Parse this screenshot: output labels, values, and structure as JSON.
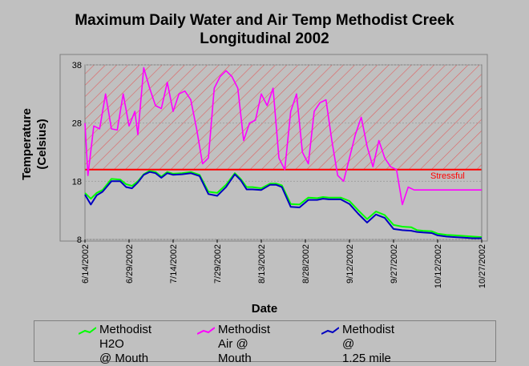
{
  "title_line1": "Maximum Daily Water and Air Temp Methodist Creek",
  "title_line2": "Longitudinal 2002",
  "chart_data": {
    "type": "line",
    "title": "Maximum Daily Water and Air Temp Methodist Creek Longitudinal 2002",
    "xlabel": "Date",
    "ylabel": "Temperature (Celsius)",
    "ylabel_line1": "Temperature",
    "ylabel_line2": "(Celsius)",
    "ylim": [
      8,
      38
    ],
    "yticks": [
      "38",
      "28",
      "18",
      "8"
    ],
    "xlim": [
      "6/14/2002",
      "10/27/2002"
    ],
    "xticks": [
      "6/14/2002",
      "6/29/2002",
      "7/14/2002",
      "7/29/2002",
      "8/13/2002",
      "8/28/2002",
      "9/12/2002",
      "9/27/2002",
      "10/12/2002",
      "10/27/2002"
    ],
    "threshold": {
      "label": "Stressful",
      "value": 20,
      "color": "#ff0000"
    },
    "series": [
      {
        "name": "Methodist H2O @ Mouth",
        "color": "#00ff00",
        "x": [
          "6/14",
          "6/16",
          "6/18",
          "6/20",
          "6/23",
          "6/26",
          "6/28",
          "6/30",
          "7/2",
          "7/4",
          "7/6",
          "7/8",
          "7/10",
          "7/12",
          "7/14",
          "7/17",
          "7/20",
          "7/23",
          "7/26",
          "7/29",
          "8/1",
          "8/4",
          "8/6",
          "8/8",
          "8/10",
          "8/13",
          "8/16",
          "8/18",
          "8/20",
          "8/23",
          "8/26",
          "8/29",
          "9/1",
          "9/3",
          "9/5",
          "9/7",
          "9/9",
          "9/12",
          "9/15",
          "9/18",
          "9/21",
          "9/24",
          "9/27",
          "9/30",
          "10/3",
          "10/5",
          "10/7",
          "10/10",
          "10/12",
          "10/15",
          "10/18",
          "10/21",
          "10/24",
          "10/27"
        ],
        "values": [
          16,
          15,
          16,
          16.5,
          18.4,
          18.3,
          17.5,
          17.2,
          18,
          19.2,
          19.8,
          19.6,
          18.8,
          19.6,
          19.3,
          19.4,
          19.6,
          19.1,
          16.2,
          16,
          17.4,
          19.4,
          18.4,
          17,
          17,
          16.8,
          17.6,
          17.6,
          17.3,
          14.1,
          14,
          15.2,
          15.1,
          15.3,
          15.2,
          15.2,
          15.2,
          14.6,
          13,
          11.5,
          12.8,
          12.2,
          10.5,
          10.2,
          10.1,
          9.6,
          9.5,
          9.4,
          9,
          8.8,
          8.7,
          8.6,
          8.5,
          8.4
        ]
      },
      {
        "name": "Methodist Air @ Mouth",
        "color": "#ff00ff",
        "x": [
          "6/14",
          "6/15",
          "6/17",
          "6/19",
          "6/21",
          "6/23",
          "6/25",
          "6/27",
          "6/29",
          "6/31",
          "7/2",
          "7/4",
          "7/6",
          "7/8",
          "7/10",
          "7/12",
          "7/14",
          "7/16",
          "7/18",
          "7/20",
          "7/22",
          "7/24",
          "7/26",
          "7/28",
          "7/30",
          "8/1",
          "8/3",
          "8/5",
          "8/7",
          "8/9",
          "8/11",
          "8/13",
          "8/15",
          "8/17",
          "8/19",
          "8/21",
          "8/23",
          "8/25",
          "8/27",
          "8/29",
          "8/31",
          "9/2",
          "9/4",
          "9/6",
          "9/8",
          "9/10",
          "9/12",
          "9/14",
          "9/16",
          "9/18",
          "9/20",
          "9/22",
          "9/24",
          "9/26",
          "9/28",
          "9/30",
          "10/2",
          "10/4",
          "10/6",
          "10/8",
          "10/10",
          "10/12",
          "10/14",
          "10/16",
          "10/18",
          "10/20",
          "10/22",
          "10/24",
          "10/26",
          "10/27"
        ],
        "values": [
          28,
          19,
          27.5,
          27,
          33,
          27,
          26.8,
          33,
          27.5,
          30,
          26,
          37.5,
          34,
          31,
          30.5,
          35,
          30,
          33,
          33.5,
          32,
          27,
          21,
          22,
          34,
          36,
          37,
          36,
          34,
          25,
          28,
          28.5,
          33,
          31,
          34,
          22,
          20,
          30,
          33,
          23,
          21,
          30,
          31.5,
          32,
          25,
          19,
          18,
          22,
          26,
          29,
          24,
          20.5,
          25,
          22,
          20.5,
          20,
          14,
          17,
          16.5,
          16.5,
          16.5,
          16.5,
          16.5,
          16.5,
          16.5,
          16.5,
          16.5,
          16.5,
          16.5,
          16.5,
          16.5
        ]
      },
      {
        "name": "Methodist @ 1.25 mile",
        "color": "#0000c0",
        "x": [
          "6/14",
          "6/16",
          "6/18",
          "6/20",
          "6/23",
          "6/26",
          "6/28",
          "6/30",
          "7/2",
          "7/4",
          "7/6",
          "7/8",
          "7/10",
          "7/12",
          "7/14",
          "7/17",
          "7/20",
          "7/23",
          "7/26",
          "7/29",
          "8/1",
          "8/4",
          "8/6",
          "8/8",
          "8/10",
          "8/13",
          "8/16",
          "8/18",
          "8/20",
          "8/23",
          "8/26",
          "8/29",
          "9/1",
          "9/3",
          "9/5",
          "9/7",
          "9/9",
          "9/12",
          "9/15",
          "9/18",
          "9/21",
          "9/24",
          "9/27",
          "9/30",
          "10/3",
          "10/5",
          "10/7",
          "10/10",
          "10/12",
          "10/15",
          "10/18",
          "10/21",
          "10/24",
          "10/27"
        ],
        "values": [
          15.7,
          14,
          15.6,
          16.2,
          18,
          18,
          17,
          16.8,
          17.8,
          19.1,
          19.6,
          19.4,
          18.6,
          19.4,
          19.1,
          19.2,
          19.4,
          18.9,
          15.8,
          15.5,
          17,
          19.2,
          18.2,
          16.6,
          16.6,
          16.5,
          17.4,
          17.4,
          17,
          13.6,
          13.5,
          14.8,
          14.8,
          15,
          14.9,
          14.9,
          14.9,
          14.1,
          12.4,
          10.9,
          12.3,
          11.7,
          9.8,
          9.6,
          9.5,
          9.3,
          9.2,
          9.1,
          8.7,
          8.5,
          8.4,
          8.3,
          8.2,
          8.2
        ]
      }
    ],
    "legend": "bottom"
  }
}
